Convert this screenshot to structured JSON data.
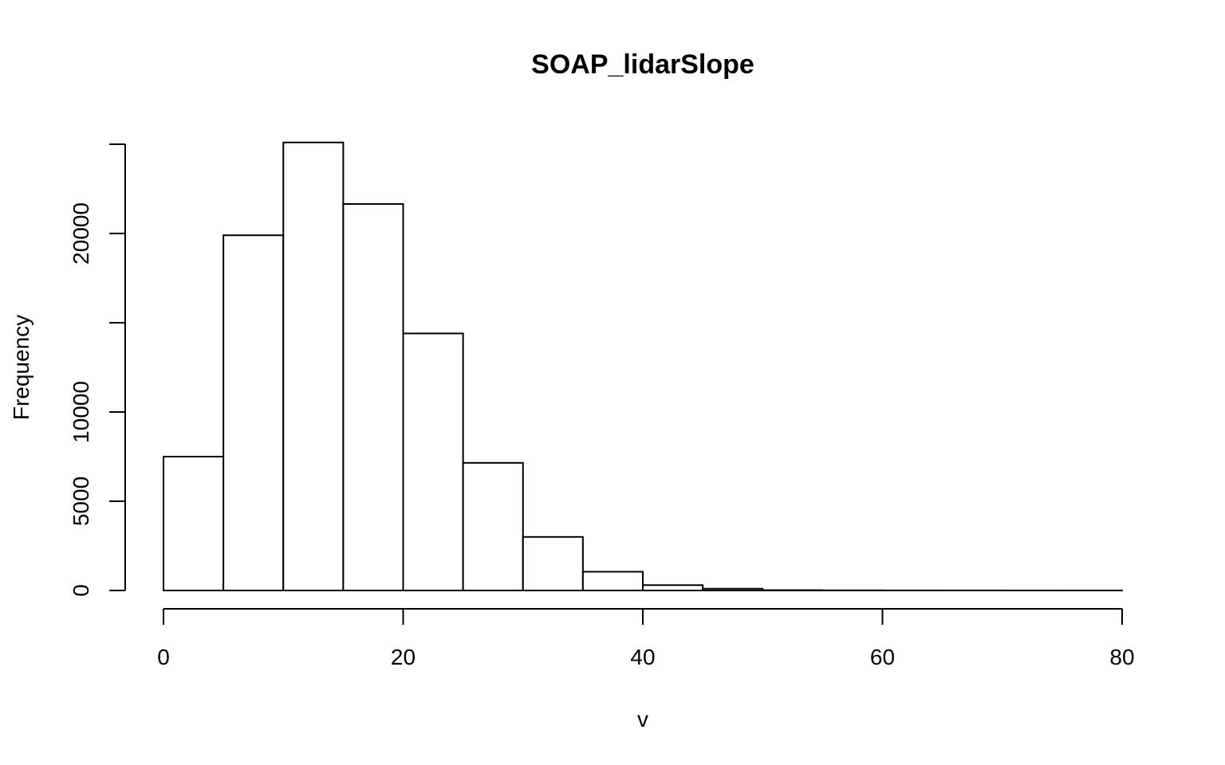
{
  "chart_data": {
    "type": "bar",
    "title": "SOAP_lidarSlope",
    "xlabel": "v",
    "ylabel": "Frequency",
    "bin_edges": [
      0,
      5,
      10,
      15,
      20,
      25,
      30,
      35,
      40,
      45,
      50,
      55,
      60,
      65,
      70,
      75,
      80
    ],
    "values": [
      7500,
      19900,
      25100,
      21650,
      14400,
      7150,
      3000,
      1050,
      300,
      100,
      20,
      10,
      5,
      3,
      2,
      2
    ],
    "xlim": [
      0,
      80
    ],
    "ylim": [
      0,
      25000
    ],
    "x_ticks": [
      0,
      20,
      40,
      60,
      80
    ],
    "y_ticks": [
      0,
      5000,
      10000,
      15000,
      20000,
      25000
    ],
    "y_tick_labels": [
      "0",
      "5000",
      "10000",
      "",
      "20000",
      ""
    ],
    "grid": false,
    "legend": "none"
  }
}
